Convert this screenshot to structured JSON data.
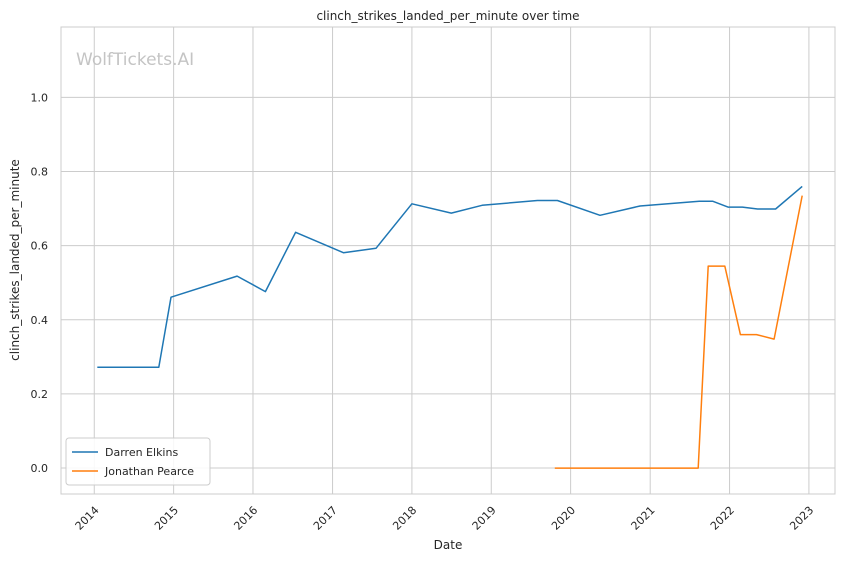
{
  "chart_data": {
    "type": "line",
    "title": "clinch_strikes_landed_per_minute over time",
    "xlabel": "Date",
    "ylabel": "clinch_strikes_landed_per_minute",
    "watermark": "WolfTickets.AI",
    "x_ticks": [
      "2014",
      "2015",
      "2016",
      "2017",
      "2018",
      "2019",
      "2020",
      "2021",
      "2022",
      "2023"
    ],
    "y_ticks": [
      "0.0",
      "0.2",
      "0.4",
      "0.6",
      "0.8",
      "1.0"
    ],
    "xlim": [
      "2013-08-01",
      "2023-05-01"
    ],
    "ylim": [
      -0.07,
      1.19
    ],
    "grid": true,
    "legend_position": "lower-left",
    "series": [
      {
        "name": "Darren Elkins",
        "color": "#1f77b4",
        "points": [
          [
            "2014-01-15",
            0.272
          ],
          [
            "2014-10-25",
            0.272
          ],
          [
            "2014-12-20",
            0.461
          ],
          [
            "2015-10-20",
            0.518
          ],
          [
            "2016-02-27",
            0.476
          ],
          [
            "2016-07-15",
            0.636
          ],
          [
            "2017-02-20",
            0.581
          ],
          [
            "2017-07-20",
            0.593
          ],
          [
            "2018-01-01",
            0.713
          ],
          [
            "2018-07-01",
            0.688
          ],
          [
            "2018-11-20",
            0.709
          ],
          [
            "2019-08-01",
            0.722
          ],
          [
            "2019-11-01",
            0.722
          ],
          [
            "2020-05-15",
            0.682
          ],
          [
            "2020-11-15",
            0.707
          ],
          [
            "2021-08-15",
            0.72
          ],
          [
            "2021-10-15",
            0.72
          ],
          [
            "2021-12-25",
            0.704
          ],
          [
            "2022-03-01",
            0.704
          ],
          [
            "2022-05-10",
            0.699
          ],
          [
            "2022-08-01",
            0.699
          ],
          [
            "2022-12-01",
            0.76
          ]
        ]
      },
      {
        "name": "Jonathan Pearce",
        "color": "#ff7f0e",
        "points": [
          [
            "2019-10-20",
            0.0
          ],
          [
            "2021-08-10",
            0.0
          ],
          [
            "2021-09-25",
            0.545
          ],
          [
            "2021-12-10",
            0.545
          ],
          [
            "2022-02-20",
            0.36
          ],
          [
            "2022-05-05",
            0.36
          ],
          [
            "2022-07-25",
            0.348
          ],
          [
            "2022-12-01",
            0.735
          ]
        ]
      }
    ]
  }
}
